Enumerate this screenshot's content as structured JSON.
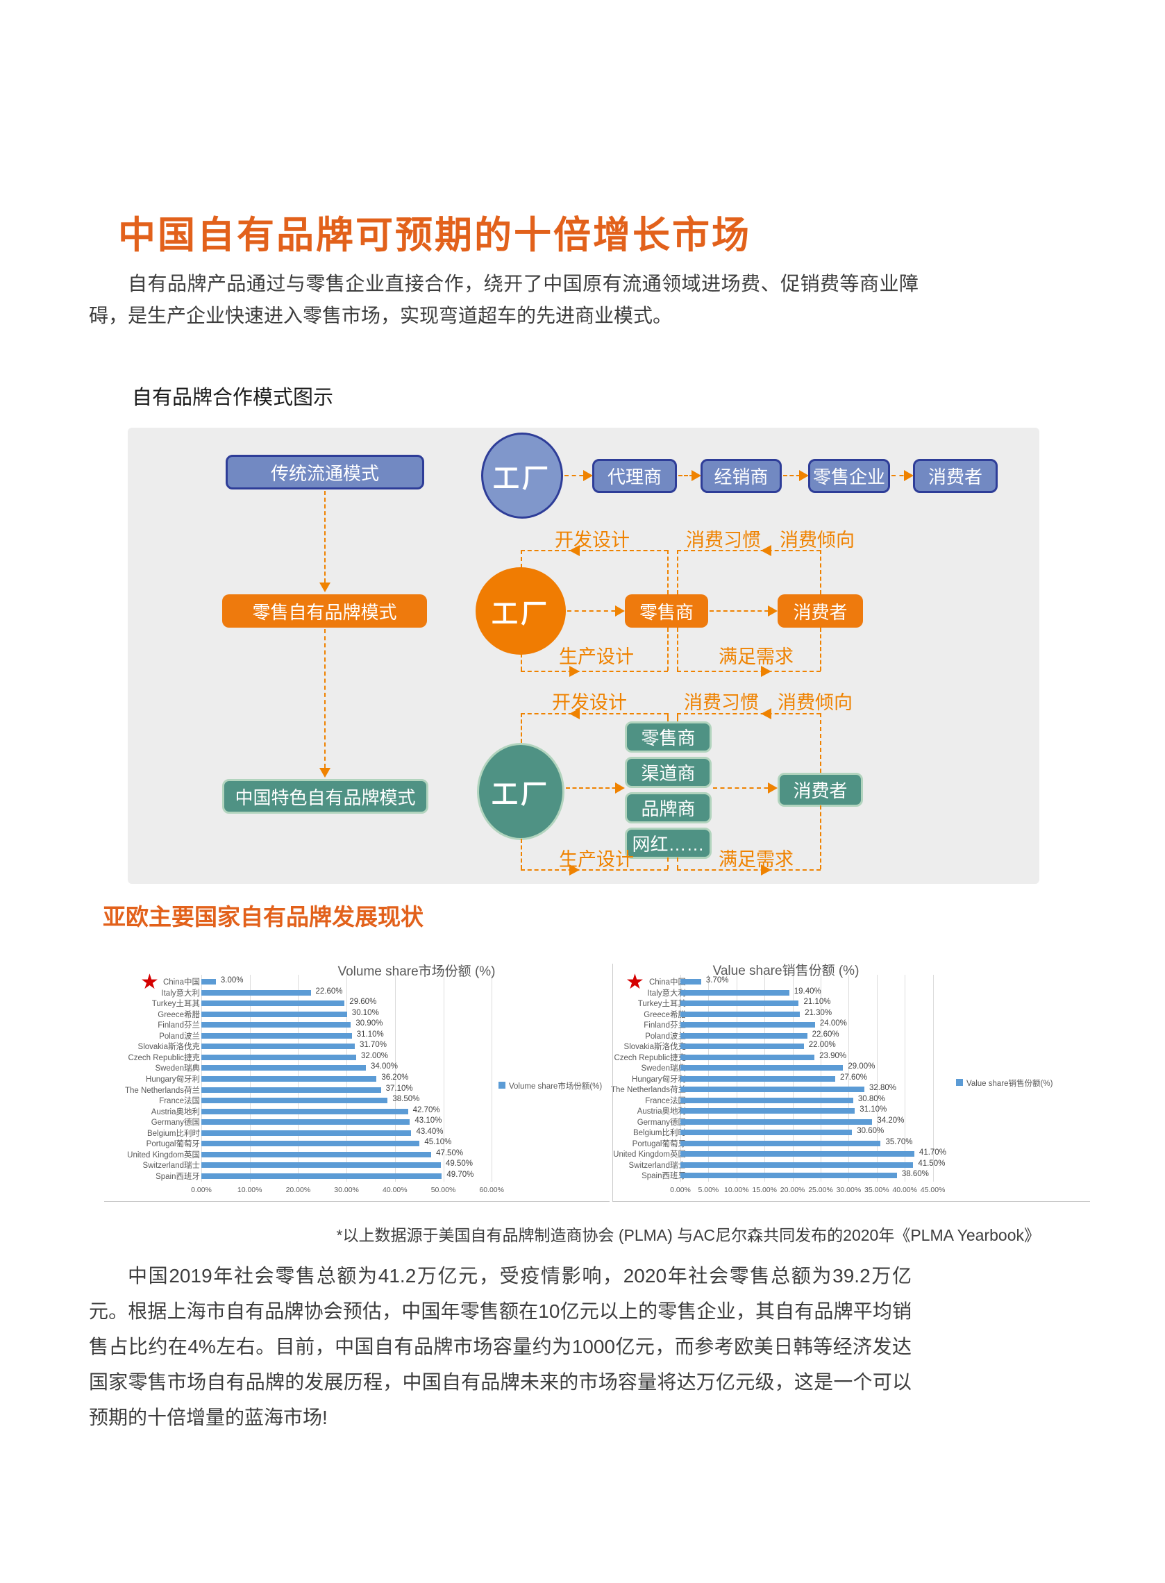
{
  "page": {
    "title": "中国自有品牌可预期的十倍增长市场",
    "intro": "自有品牌产品通过与零售企业直接合作，绕开了中国原有流通领域进场费、促销费等商业障碍，是生产企业快速进入零售市场，实现弯道超车的先进商业模式。",
    "diagram_label": "自有品牌合作模式图示",
    "section2_title": "亚欧主要国家自有品牌发展现状",
    "footnote": "*以上数据源于美国自有品牌制造商协会 (PLMA) 与AC尼尔森共同发布的2020年《PLMA Yearbook》",
    "closing": "中国2019年社会零售总额为41.2万亿元，受疫情影响，2020年社会零售总额为39.2万亿元。根据上海市自有品牌协会预估，中国年零售额在10亿元以上的零售企业，其自有品牌平均销售占比约在4%左右。目前，中国自有品牌市场容量约为1000亿元，而参考欧美日韩等经济发达国家零售市场自有品牌的发展历程，中国自有品牌未来的市场容量将达万亿元级，这是一个可以预期的十倍增量的蓝海市场!"
  },
  "diagram": {
    "models": [
      "传统流通模式",
      "零售自有品牌模式",
      "中国特色自有品牌模式"
    ],
    "factory": "工厂",
    "row1_chain": [
      "代理商",
      "经销商",
      "零售企业",
      "消费者"
    ],
    "row2_chain": [
      "零售商",
      "消费者"
    ],
    "row3_stack": [
      "零售商",
      "渠道商",
      "品牌商",
      "网红……"
    ],
    "row3_consumer": "消费者",
    "labels": {
      "develop": "开发设计",
      "habit": "消费习惯　消费倾向",
      "produce": "生产设计",
      "satisfy": "满足需求"
    },
    "colors": {
      "blue_fill": "#7289C2",
      "blue_border": "#2E3D98",
      "orange_fill": "#EE7A0D",
      "green_fill": "#4F9284",
      "arrow_orange": "#EF8200",
      "background": "#EDEDED"
    }
  },
  "chart_data": [
    {
      "type": "bar",
      "orientation": "horizontal",
      "title": "Volume share市场份额 (%)",
      "legend": "Volume share市场份额(%)",
      "categories": [
        "China中国",
        "Italy意大利",
        "Turkey土耳其",
        "Greece希腊",
        "Finland芬兰",
        "Poland波兰",
        "Slovakia斯洛伐克",
        "Czech Republic捷克",
        "Sweden瑞典",
        "Hungary匈牙利",
        "The Netherlands荷兰",
        "France法国",
        "Austria奥地利",
        "Germany德国",
        "Belgium比利时",
        "Portugal葡萄牙",
        "United Kingdom英国",
        "Switzerland瑞士",
        "Spain西班牙"
      ],
      "values": [
        3.0,
        22.6,
        29.6,
        30.1,
        30.9,
        31.1,
        31.7,
        32.0,
        34.0,
        36.2,
        37.1,
        38.5,
        42.7,
        43.1,
        43.4,
        45.1,
        47.5,
        49.5,
        49.7
      ],
      "xlim": [
        0,
        60
      ],
      "ticks": [
        0,
        10,
        20,
        30,
        40,
        50,
        60
      ],
      "bar_color": "#5B9BD5",
      "grid": true,
      "legend_position": "right",
      "highlight": "China中国 marked with red star"
    },
    {
      "type": "bar",
      "orientation": "horizontal",
      "title": "Value share销售份额 (%)",
      "legend": "Value share销售份额(%)",
      "categories": [
        "China中国",
        "Italy意大利",
        "Turkey土耳其",
        "Greece希腊",
        "Finland芬兰",
        "Poland波兰",
        "Slovakia斯洛伐克",
        "Czech Republic捷克",
        "Sweden瑞典",
        "Hungary匈牙利",
        "The Netherlands荷兰",
        "France法国",
        "Austria奥地利",
        "Germany德国",
        "Belgium比利时",
        "Portugal葡萄牙",
        "United Kingdom英国",
        "Switzerland瑞士",
        "Spain西班牙"
      ],
      "values": [
        3.7,
        19.4,
        21.1,
        21.3,
        24.0,
        22.6,
        22.0,
        23.9,
        29.0,
        27.6,
        32.8,
        30.8,
        31.1,
        34.2,
        30.6,
        35.7,
        41.7,
        41.5,
        38.6
      ],
      "xlim": [
        0,
        45
      ],
      "ticks": [
        0,
        5,
        10,
        15,
        20,
        25,
        30,
        35,
        40,
        45
      ],
      "bar_color": "#5B9BD5",
      "grid": true,
      "legend_position": "right",
      "highlight": "China中国 marked with red star"
    }
  ]
}
